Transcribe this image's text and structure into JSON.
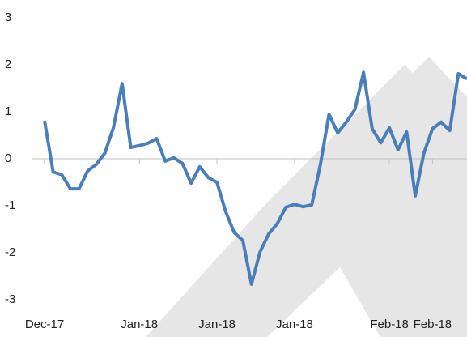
{
  "chart_data": {
    "type": "line",
    "categories": [
      "Dec-17",
      null,
      null,
      null,
      null,
      null,
      null,
      null,
      null,
      null,
      null,
      "Jan-18",
      null,
      null,
      null,
      null,
      null,
      null,
      null,
      null,
      "Jan-18",
      null,
      null,
      null,
      null,
      null,
      null,
      null,
      null,
      "Jan-18",
      null,
      null,
      null,
      null,
      null,
      null,
      null,
      null,
      null,
      null,
      "Feb-18",
      null,
      null,
      null,
      null,
      "Feb-18",
      null,
      null,
      null,
      null
    ],
    "series": [
      {
        "color": "#4a7ebb",
        "values": [
          0.81,
          -0.28,
          -0.34,
          -0.64,
          -0.64,
          -0.26,
          -0.12,
          0.12,
          0.67,
          1.6,
          0.24,
          0.28,
          0.33,
          0.43,
          -0.05,
          0.02,
          -0.1,
          -0.52,
          -0.17,
          -0.4,
          -0.5,
          -1.12,
          -1.57,
          -1.74,
          -2.67,
          -1.98,
          -1.6,
          -1.38,
          -1.03,
          -0.97,
          -1.02,
          -0.98,
          -0.12,
          0.95,
          0.55,
          0.78,
          1.05,
          1.84,
          0.64,
          0.34,
          0.66,
          0.19,
          0.57,
          -0.79,
          0.12,
          0.64,
          0.78,
          0.6,
          1.81,
          1.7
        ]
      }
    ],
    "ylim": [
      -3,
      3
    ],
    "yticks": [
      -3,
      -2,
      -1,
      0,
      1,
      2,
      3
    ]
  }
}
